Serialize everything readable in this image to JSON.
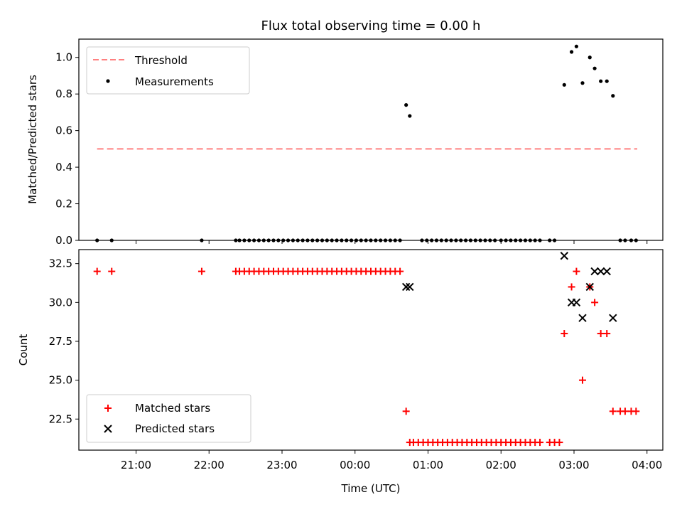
{
  "chart_data": [
    {
      "type": "scatter",
      "title": "Flux total observing time = 0.00 h",
      "xlabel": "",
      "ylabel": "Matched/Predicted stars",
      "xlim": [
        "20:13",
        "04:13"
      ],
      "ylim": [
        0,
        1.1
      ],
      "yticks": [
        "0.0",
        "0.2",
        "0.4",
        "0.6",
        "0.8",
        "1.0"
      ],
      "legend_position": "top-left",
      "series": [
        {
          "name": "Threshold",
          "kind": "dashed-line",
          "color": "#ff8080",
          "x": [
            "20:28",
            "03:52"
          ],
          "y": [
            0.5,
            0.5
          ]
        },
        {
          "name": "Measurements",
          "kind": "dots",
          "color": "#000000",
          "x": [
            "20:28",
            "20:40",
            "21:54",
            "22:22",
            "22:25",
            "22:29",
            "22:33",
            "22:37",
            "22:41",
            "22:45",
            "22:49",
            "22:53",
            "22:57",
            "23:01",
            "23:05",
            "23:09",
            "23:13",
            "23:17",
            "23:21",
            "23:25",
            "23:29",
            "23:33",
            "23:37",
            "23:41",
            "23:45",
            "23:49",
            "23:53",
            "23:57",
            "00:01",
            "00:05",
            "00:09",
            "00:13",
            "00:17",
            "00:21",
            "00:25",
            "00:29",
            "00:33",
            "00:37",
            "00:42",
            "00:45",
            "00:55",
            "00:59",
            "01:03",
            "01:07",
            "01:11",
            "01:15",
            "01:19",
            "01:23",
            "01:27",
            "01:31",
            "01:35",
            "01:39",
            "01:43",
            "01:47",
            "01:51",
            "01:55",
            "02:00",
            "02:04",
            "02:08",
            "02:12",
            "02:16",
            "02:20",
            "02:24",
            "02:28",
            "02:32",
            "02:40",
            "02:44",
            "02:52",
            "02:58",
            "03:02",
            "03:07",
            "03:13",
            "03:17",
            "03:22",
            "03:27",
            "03:32",
            "03:38",
            "03:42",
            "03:47",
            "03:51"
          ],
          "y": [
            0,
            0,
            0,
            0,
            0,
            0,
            0,
            0,
            0,
            0,
            0,
            0,
            0,
            0,
            0,
            0,
            0,
            0,
            0,
            0,
            0,
            0,
            0,
            0,
            0,
            0,
            0,
            0,
            0,
            0,
            0,
            0,
            0,
            0,
            0,
            0,
            0,
            0,
            0.74,
            0.68,
            0,
            0,
            0,
            0,
            0,
            0,
            0,
            0,
            0,
            0,
            0,
            0,
            0,
            0,
            0,
            0,
            0,
            0,
            0,
            0,
            0,
            0,
            0,
            0,
            0,
            0,
            0,
            0.85,
            1.03,
            1.06,
            0.86,
            1.0,
            0.94,
            0.87,
            0.87,
            0.79,
            0,
            0,
            0,
            0
          ]
        }
      ]
    },
    {
      "type": "scatter",
      "title": "",
      "xlabel": "Time (UTC)",
      "ylabel": "Count",
      "xlim": [
        "20:13",
        "04:13"
      ],
      "ylim": [
        20.5,
        33.4
      ],
      "xticks": [
        "21:00",
        "22:00",
        "23:00",
        "00:00",
        "01:00",
        "02:00",
        "03:00",
        "04:00"
      ],
      "yticks": [
        "22.5",
        "25.0",
        "27.5",
        "30.0",
        "32.5"
      ],
      "legend_position": "bottom-left",
      "series": [
        {
          "name": "Matched stars",
          "kind": "plus",
          "color": "#ff0000",
          "x": [
            "20:28",
            "20:40",
            "21:54",
            "22:22",
            "22:25",
            "22:29",
            "22:33",
            "22:37",
            "22:41",
            "22:45",
            "22:49",
            "22:53",
            "22:57",
            "23:01",
            "23:05",
            "23:09",
            "23:13",
            "23:17",
            "23:21",
            "23:25",
            "23:29",
            "23:33",
            "23:37",
            "23:41",
            "23:45",
            "23:49",
            "23:53",
            "23:57",
            "00:01",
            "00:05",
            "00:09",
            "00:13",
            "00:17",
            "00:21",
            "00:25",
            "00:29",
            "00:33",
            "00:37",
            "00:42",
            "00:45",
            "00:48",
            "00:52",
            "00:56",
            "01:00",
            "01:04",
            "01:08",
            "01:12",
            "01:16",
            "01:20",
            "01:24",
            "01:28",
            "01:32",
            "01:36",
            "01:40",
            "01:44",
            "01:48",
            "01:52",
            "01:56",
            "02:00",
            "02:04",
            "02:08",
            "02:12",
            "02:16",
            "02:20",
            "02:24",
            "02:28",
            "02:32",
            "02:40",
            "02:44",
            "02:48",
            "02:52",
            "02:58",
            "03:02",
            "03:07",
            "03:13",
            "03:17",
            "03:22",
            "03:27",
            "03:32",
            "03:38",
            "03:42",
            "03:47",
            "03:51"
          ],
          "y": [
            32,
            32,
            32,
            32,
            32,
            32,
            32,
            32,
            32,
            32,
            32,
            32,
            32,
            32,
            32,
            32,
            32,
            32,
            32,
            32,
            32,
            32,
            32,
            32,
            32,
            32,
            32,
            32,
            32,
            32,
            32,
            32,
            32,
            32,
            32,
            32,
            32,
            32,
            23,
            21,
            21,
            21,
            21,
            21,
            21,
            21,
            21,
            21,
            21,
            21,
            21,
            21,
            21,
            21,
            21,
            21,
            21,
            21,
            21,
            21,
            21,
            21,
            21,
            21,
            21,
            21,
            21,
            21,
            21,
            21,
            28,
            31,
            32,
            25,
            31,
            30,
            28,
            28,
            23,
            23,
            23,
            23,
            23
          ]
        },
        {
          "name": "Predicted stars",
          "kind": "x",
          "color": "#000000",
          "x": [
            "00:42",
            "00:45",
            "02:52",
            "02:58",
            "03:02",
            "03:07",
            "03:13",
            "03:17",
            "03:22",
            "03:27",
            "03:32"
          ],
          "y": [
            31,
            31,
            33,
            30,
            30,
            29,
            31,
            32,
            32,
            32,
            29
          ]
        }
      ]
    }
  ]
}
